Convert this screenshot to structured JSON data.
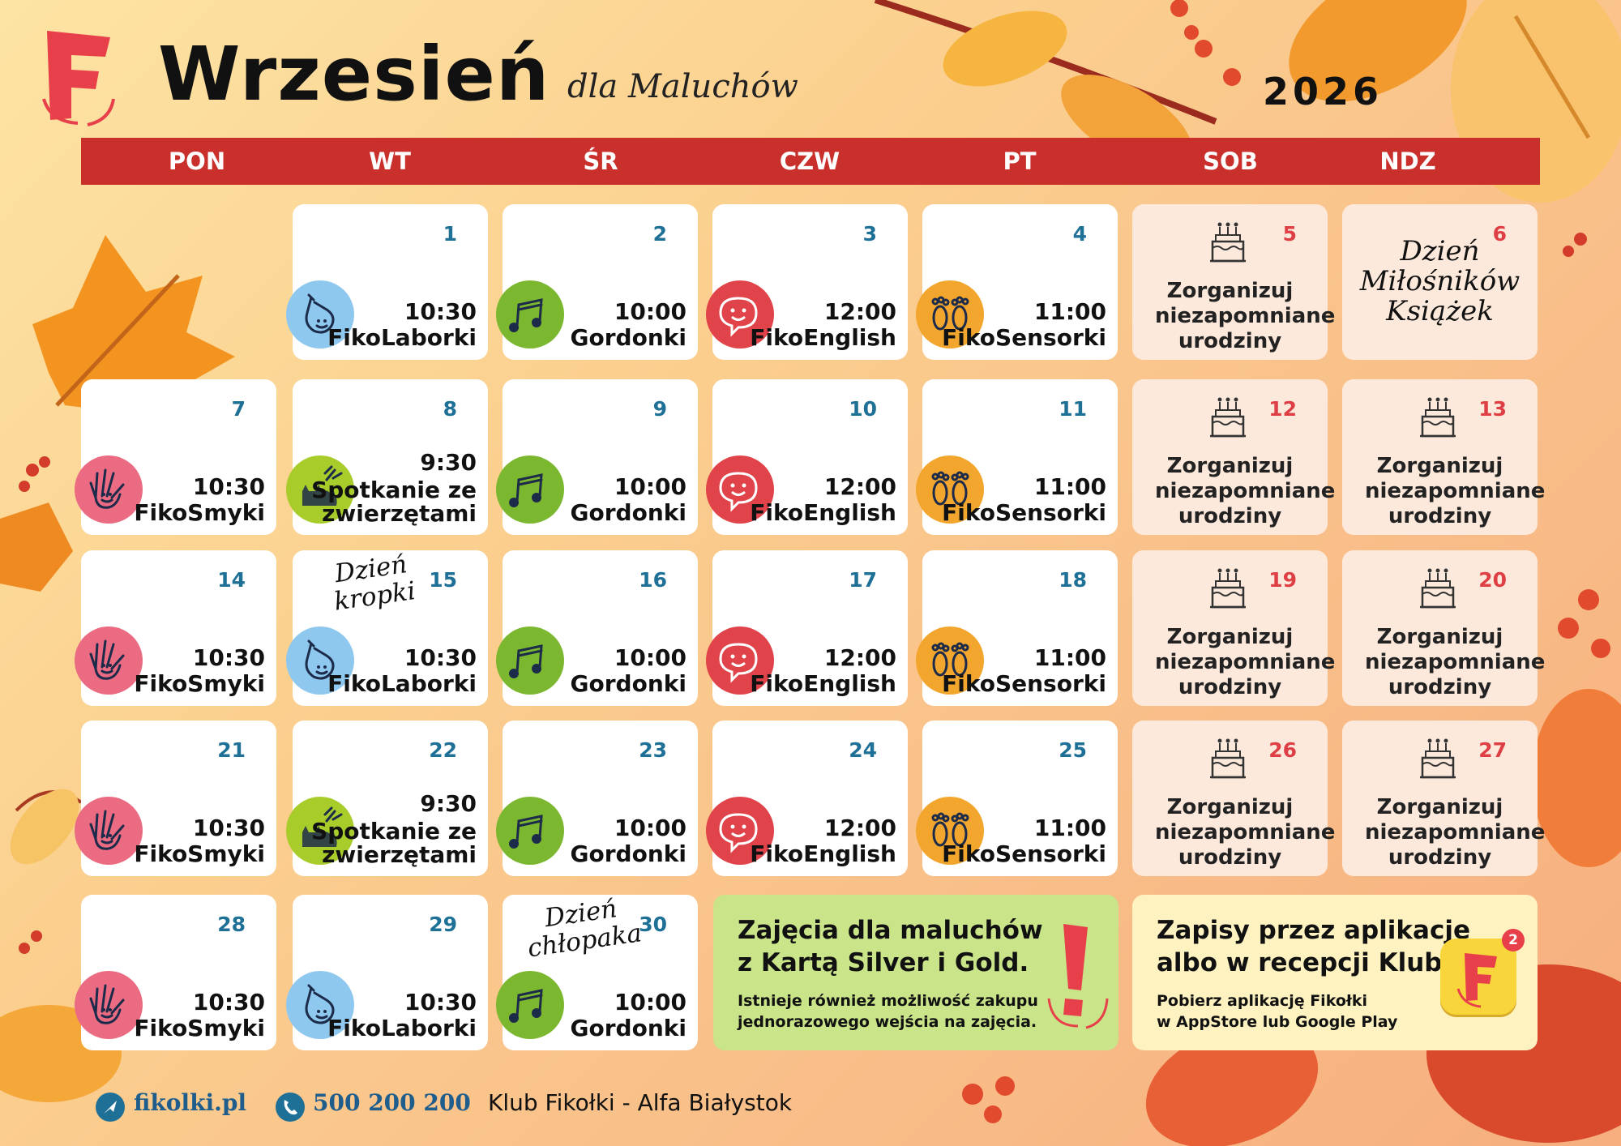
{
  "header": {
    "logo_letter": "F",
    "month": "Wrzesień",
    "subtitle": "dla Maluchów",
    "year": "2026"
  },
  "weekdays": [
    "PON",
    "WT",
    "ŚR",
    "CZW",
    "PT",
    "SOB",
    "NDZ"
  ],
  "birthday_text": "Zorganizuj niezapomniane urodziny",
  "cells": [
    {
      "day": "1",
      "time": "10:30",
      "name": "FikoLaborki",
      "icon": "flask-icon"
    },
    {
      "day": "2",
      "time": "10:00",
      "name": "Gordonki",
      "icon": "music-notes-icon"
    },
    {
      "day": "3",
      "time": "12:00",
      "name": "FikoEnglish",
      "icon": "speech-bubble-icon"
    },
    {
      "day": "4",
      "time": "11:00",
      "name": "FikoSensorki",
      "icon": "footprints-icon"
    },
    {
      "day": "5"
    },
    {
      "day": "6",
      "special": "Dzień Miłośników Książek"
    },
    {
      "day": "7",
      "time": "10:30",
      "name": "FikoSmyki",
      "icon": "hand-icon"
    },
    {
      "day": "8",
      "time": "9:30",
      "name": "Spotkanie ze zwierzętami",
      "icon": "animals-icon"
    },
    {
      "day": "9",
      "time": "10:00",
      "name": "Gordonki",
      "icon": "music-notes-icon"
    },
    {
      "day": "10",
      "time": "12:00",
      "name": "FikoEnglish",
      "icon": "speech-bubble-icon"
    },
    {
      "day": "11",
      "time": "11:00",
      "name": "FikoSensorki",
      "icon": "footprints-icon"
    },
    {
      "day": "12"
    },
    {
      "day": "13"
    },
    {
      "day": "14",
      "time": "10:30",
      "name": "FikoSmyki",
      "icon": "hand-icon"
    },
    {
      "day": "15",
      "time": "10:30",
      "name": "FikoLaborki",
      "icon": "flask-icon",
      "special": "Dzień kropki"
    },
    {
      "day": "16",
      "time": "10:00",
      "name": "Gordonki",
      "icon": "music-notes-icon"
    },
    {
      "day": "17",
      "time": "12:00",
      "name": "FikoEnglish",
      "icon": "speech-bubble-icon"
    },
    {
      "day": "18",
      "time": "11:00",
      "name": "FikoSensorki",
      "icon": "footprints-icon"
    },
    {
      "day": "19"
    },
    {
      "day": "20"
    },
    {
      "day": "21",
      "time": "10:30",
      "name": "FikoSmyki",
      "icon": "hand-icon"
    },
    {
      "day": "22",
      "time": "9:30",
      "name": "Spotkanie ze zwierzętami",
      "icon": "animals-icon"
    },
    {
      "day": "23",
      "time": "10:00",
      "name": "Gordonki",
      "icon": "music-notes-icon"
    },
    {
      "day": "24",
      "time": "12:00",
      "name": "FikoEnglish",
      "icon": "speech-bubble-icon"
    },
    {
      "day": "25",
      "time": "11:00",
      "name": "FikoSensorki",
      "icon": "footprints-icon"
    },
    {
      "day": "26"
    },
    {
      "day": "27"
    },
    {
      "day": "28",
      "time": "10:30",
      "name": "FikoSmyki",
      "icon": "hand-icon"
    },
    {
      "day": "29",
      "time": "10:30",
      "name": "FikoLaborki",
      "icon": "flask-icon"
    },
    {
      "day": "30",
      "time": "10:00",
      "name": "Gordonki",
      "icon": "music-notes-icon",
      "special": "Dzień chłopaka"
    }
  ],
  "info_green": {
    "title_line1": "Zajęcia dla maluchów",
    "title_line2": "z Kartą Silver i Gold.",
    "text_line1": "Istnieje również możliwość zakupu",
    "text_line2": "jednorazowego wejścia na zajęcia."
  },
  "info_yellow": {
    "title_line1": "Zapisy przez aplikację",
    "title_line2": "albo w recepcji Klubu",
    "text_line1": "Pobierz aplikację Fikołki",
    "text_line2": "w AppStore lub Google Play",
    "app_badge": "2"
  },
  "footer": {
    "website": "fikolki.pl",
    "phone": "500 200 200",
    "club": "Klub Fikołki - Alfa Białystok"
  },
  "colors": {
    "header_bar": "#c9302c",
    "day_number": "#1e7096",
    "weekend_number": "#de3f44",
    "flask": "#8fc8ef",
    "music": "#7cb82f",
    "speech": "#e0444a",
    "footprints": "#f2a62d",
    "hand": "#ea6b82",
    "animals": "#a8cc2a"
  }
}
